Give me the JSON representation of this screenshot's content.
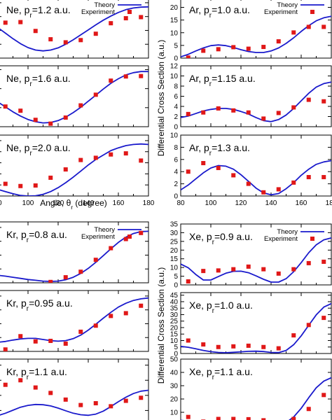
{
  "legend": {
    "theory": "Theory",
    "experiment": "Experiment"
  },
  "colors": {
    "theory": "#1a1acc",
    "experiment": "#e01818"
  },
  "xlabel": "Angle, θ",
  "xlabel_sub": "r",
  "xlabel_unit": " (degree)",
  "ylabel": "Differential Cross Section (a.u.)",
  "chart_data": [
    {
      "id": "ne12",
      "type": "line",
      "title": "Ne, p",
      "title_sub": "r",
      "title_val": "=1.2 a.u.",
      "xlim": [
        80,
        180
      ],
      "ylim": [
        0,
        22
      ],
      "experiment": {
        "x": [
          85,
          95,
          105,
          115,
          125,
          135,
          145,
          155,
          165,
          175
        ],
        "y": [
          12.8,
          13,
          9.8,
          6.8,
          5.7,
          6.5,
          8.8,
          12.6,
          14.4,
          14.8
        ]
      },
      "theory": {
        "x": [
          80,
          85,
          90,
          95,
          100,
          105,
          110,
          115,
          120,
          125,
          130,
          135,
          140,
          145,
          150,
          155,
          160,
          165,
          170,
          175,
          180
        ],
        "y": [
          11,
          9,
          7,
          5.2,
          3.8,
          2.9,
          2.6,
          2.9,
          3.7,
          5,
          6.6,
          8.4,
          10.2,
          12,
          13.7,
          15.2,
          16.5,
          17.5,
          18.1,
          18.4,
          18.5
        ]
      },
      "legend": true
    },
    {
      "id": "ne16",
      "type": "line",
      "title": "Ne, p",
      "title_sub": "r",
      "title_val": "=1.6 a.u.",
      "xlim": [
        80,
        180
      ],
      "ylim": [
        0,
        16
      ],
      "experiment": {
        "x": [
          85,
          95,
          105,
          115,
          125,
          135,
          145,
          155,
          165,
          175
        ],
        "y": [
          5.3,
          4.2,
          1.8,
          0.8,
          2.4,
          5.6,
          8.4,
          12.1,
          13.2,
          13.3
        ]
      },
      "theory": {
        "x": [
          80,
          85,
          90,
          95,
          100,
          105,
          110,
          115,
          120,
          125,
          130,
          135,
          140,
          145,
          150,
          155,
          160,
          165,
          170,
          175,
          180
        ],
        "y": [
          6.5,
          5.2,
          3.9,
          2.8,
          1.9,
          1.3,
          1,
          1.1,
          1.6,
          2.5,
          3.7,
          5.1,
          6.7,
          8.3,
          9.9,
          11.4,
          12.6,
          13.6,
          14.2,
          14.5,
          14.5
        ]
      },
      "legend": false
    },
    {
      "id": "ne20",
      "type": "line",
      "title": "Ne, p",
      "title_sub": "r",
      "title_val": "=2.0 a.u.",
      "xlim": [
        80,
        180
      ],
      "ylim": [
        0,
        11
      ],
      "experiment": {
        "x": [
          85,
          95,
          105,
          115,
          125,
          135,
          145,
          155,
          165,
          175
        ],
        "y": [
          2.2,
          1.8,
          1.9,
          3.3,
          4.8,
          6.5,
          6.9,
          7.5,
          7.7,
          6.4
        ]
      },
      "theory": {
        "x": [
          80,
          85,
          90,
          95,
          100,
          105,
          110,
          115,
          120,
          125,
          130,
          135,
          140,
          145,
          150,
          155,
          160,
          165,
          170,
          175,
          180
        ],
        "y": [
          1.2,
          0.8,
          0.4,
          0.1,
          0,
          0.05,
          0.3,
          0.8,
          1.5,
          2.4,
          3.4,
          4.5,
          5.6,
          6.6,
          7.4,
          8.2,
          8.7,
          9.1,
          9.3,
          9.4,
          9.3
        ]
      },
      "legend": false
    },
    {
      "id": "ar10",
      "type": "line",
      "title": "Ar, p",
      "title_sub": "r",
      "title_val": "=1.0 a.u.",
      "xlim": [
        80,
        180
      ],
      "ylim": [
        0,
        24
      ],
      "yticks": [
        0,
        5,
        10,
        15,
        20
      ],
      "experiment": {
        "x": [
          85,
          95,
          105,
          115,
          125,
          135,
          145,
          155,
          165,
          175
        ],
        "y": [
          0.2,
          2.9,
          3.5,
          4.3,
          3.7,
          4.4,
          6.6,
          10.1,
          12.3,
          12.3
        ]
      },
      "theory": {
        "x": [
          80,
          85,
          90,
          95,
          100,
          105,
          110,
          115,
          120,
          125,
          130,
          135,
          140,
          145,
          150,
          155,
          160,
          165,
          170,
          175,
          180
        ],
        "y": [
          0.5,
          1.5,
          2.8,
          4,
          4.9,
          5.2,
          4.9,
          4.2,
          3.3,
          2.6,
          2.2,
          2.2,
          2.8,
          4,
          5.8,
          8,
          10.5,
          12.8,
          14.7,
          15.9,
          16.5
        ]
      },
      "legend": true
    },
    {
      "id": "ar115",
      "type": "line",
      "title": "Ar, p",
      "title_sub": "r",
      "title_val": "=1.15 a.u.",
      "xlim": [
        80,
        180
      ],
      "ylim": [
        0,
        12
      ],
      "yticks": [
        0,
        2,
        4,
        6,
        8,
        10,
        12
      ],
      "experiment": {
        "x": [
          85,
          95,
          105,
          115,
          125,
          135,
          145,
          155,
          165,
          175
        ],
        "y": [
          2.5,
          2.8,
          3.6,
          3.2,
          2.8,
          1.6,
          2.7,
          3.8,
          5.3,
          5
        ]
      },
      "theory": {
        "x": [
          80,
          85,
          90,
          95,
          100,
          105,
          110,
          115,
          120,
          125,
          130,
          135,
          140,
          145,
          150,
          155,
          160,
          165,
          170,
          175,
          180
        ],
        "y": [
          1.8,
          2.1,
          2.6,
          3.1,
          3.4,
          3.6,
          3.6,
          3.4,
          3,
          2.5,
          1.8,
          1.2,
          1,
          1.4,
          2.3,
          3.6,
          5.1,
          6.6,
          7.8,
          8.5,
          8.8
        ]
      },
      "legend": false
    },
    {
      "id": "ar13",
      "type": "line",
      "title": "Ar, p",
      "title_sub": "r",
      "title_val": "=1.3 a.u.",
      "xlim": [
        80,
        180
      ],
      "ylim": [
        0,
        10
      ],
      "yticks": [
        0,
        2,
        4,
        6,
        8,
        10
      ],
      "experiment": {
        "x": [
          85,
          95,
          105,
          115,
          125,
          135,
          145,
          155,
          165,
          175
        ],
        "y": [
          4,
          5.4,
          4.6,
          3.4,
          2,
          0.6,
          1.1,
          2.2,
          3.1,
          3.1
        ]
      },
      "theory": {
        "x": [
          80,
          85,
          90,
          95,
          100,
          105,
          110,
          115,
          120,
          125,
          130,
          135,
          140,
          145,
          150,
          155,
          160,
          165,
          170,
          175,
          180
        ],
        "y": [
          1,
          1.8,
          2.8,
          3.8,
          4.6,
          5,
          4.9,
          4.4,
          3.5,
          2.4,
          1.3,
          0.5,
          0.2,
          0.4,
          1.2,
          2.2,
          3.4,
          4.4,
          5.2,
          5.6,
          5.8
        ]
      },
      "legend": false
    },
    {
      "id": "kr08",
      "type": "line",
      "title": "Kr, p",
      "title_sub": "r",
      "title_val": "=0.8 a.u.",
      "xlim": [
        80,
        180
      ],
      "ylim": [
        0,
        22
      ],
      "experiment": {
        "x": [
          115,
          125,
          135,
          145,
          155,
          165,
          175
        ],
        "y": [
          0.3,
          2,
          4,
          8.3,
          12.5,
          15.8,
          18
        ]
      },
      "theory": {
        "x": [
          80,
          85,
          90,
          95,
          100,
          105,
          110,
          115,
          120,
          125,
          130,
          135,
          140,
          145,
          150,
          155,
          160,
          165,
          170,
          175,
          180
        ],
        "y": [
          2.7,
          2.4,
          2,
          1.6,
          1.2,
          0.9,
          0.6,
          0.5,
          0.6,
          1.1,
          2,
          3.4,
          5.2,
          7.4,
          9.8,
          12.3,
          14.6,
          16.5,
          17.8,
          18.5,
          18.6
        ]
      },
      "legend": true
    },
    {
      "id": "kr095",
      "type": "line",
      "title": "Kr, p",
      "title_sub": "r",
      "title_val": "=0.95 a.u.",
      "xlim": [
        80,
        180
      ],
      "ylim": [
        0,
        22
      ],
      "experiment": {
        "x": [
          85,
          95,
          105,
          115,
          125,
          135,
          145,
          155,
          165,
          175
        ],
        "y": [
          0.7,
          5.5,
          3.6,
          3.8,
          2.8,
          7.1,
          9.3,
          12.8,
          13.8,
          16.5
        ]
      },
      "theory": {
        "x": [
          80,
          85,
          90,
          95,
          100,
          105,
          110,
          115,
          120,
          125,
          130,
          135,
          140,
          145,
          150,
          155,
          160,
          165,
          170,
          175,
          180
        ],
        "y": [
          3.3,
          3.6,
          4.1,
          4.5,
          4.7,
          4.7,
          4.3,
          3.9,
          3.7,
          3.9,
          4.6,
          5.9,
          7.7,
          9.8,
          12,
          14.1,
          16,
          17.4,
          18.4,
          19,
          19.3
        ]
      },
      "legend": false
    },
    {
      "id": "kr11",
      "type": "line",
      "title": "Kr, p",
      "title_sub": "r",
      "title_val": "=1.1 a.u.",
      "xlim": [
        80,
        180
      ],
      "ylim": [
        0,
        22
      ],
      "experiment": {
        "x": [
          85,
          95,
          105,
          115,
          125,
          135,
          145,
          155,
          165,
          175
        ],
        "y": [
          13.5,
          15,
          12.6,
          10.8,
          8.6,
          6.8,
          7.4,
          6.4,
          8.2,
          9.2
        ]
      },
      "theory": {
        "x": [
          80,
          85,
          90,
          95,
          100,
          105,
          110,
          115,
          120,
          125,
          130,
          135,
          140,
          145,
          150,
          155,
          160,
          165,
          170,
          175,
          180
        ],
        "y": [
          3.3,
          4.1,
          5.1,
          6.1,
          6.7,
          7,
          6.9,
          6.5,
          5.8,
          4.9,
          4.1,
          3.6,
          3.4,
          3.8,
          4.8,
          6.3,
          7.9,
          9.4,
          10.6,
          11.4,
          11.7
        ]
      },
      "legend": false
    },
    {
      "id": "xe09",
      "type": "line",
      "title": "Xe, p",
      "title_sub": "r",
      "title_val": "=0.9 a.u.",
      "xlim": [
        80,
        180
      ],
      "ylim": [
        0,
        35
      ],
      "yticks": [
        0,
        5,
        10,
        15,
        20,
        25,
        30,
        35
      ],
      "experiment": {
        "x": [
          85,
          95,
          105,
          115,
          125,
          135,
          145,
          155,
          165,
          175
        ],
        "y": [
          2,
          8,
          8.3,
          9,
          10.5,
          9,
          6.5,
          9,
          12.5,
          13.3
        ]
      },
      "theory": {
        "x": [
          80,
          85,
          90,
          95,
          100,
          105,
          110,
          115,
          120,
          125,
          130,
          135,
          140,
          145,
          150,
          155,
          160,
          165,
          170,
          175,
          180
        ],
        "y": [
          12,
          9.8,
          6,
          2.8,
          2.8,
          4.8,
          6.7,
          7.8,
          7.9,
          7,
          5.2,
          3.2,
          1.6,
          1.6,
          3.6,
          7.6,
          12.8,
          18.5,
          23,
          25.9,
          27
        ]
      },
      "legend": true
    },
    {
      "id": "xe10",
      "type": "line",
      "title": "Xe, p",
      "title_sub": "r",
      "title_val": "=1.0 a.u.",
      "xlim": [
        80,
        180
      ],
      "ylim": [
        0,
        47
      ],
      "yticks": [
        0,
        5,
        10,
        15,
        20,
        25,
        30,
        35,
        40,
        45
      ],
      "experiment": {
        "x": [
          85,
          95,
          105,
          115,
          125,
          135,
          145,
          155,
          165,
          175
        ],
        "y": [
          10,
          7,
          5,
          5.5,
          6,
          5,
          4,
          14,
          22,
          27.5
        ]
      },
      "theory": {
        "x": [
          80,
          85,
          90,
          95,
          100,
          105,
          110,
          115,
          120,
          125,
          130,
          135,
          140,
          145,
          150,
          155,
          160,
          165,
          170,
          175,
          180
        ],
        "y": [
          5.5,
          4.8,
          3.6,
          2.4,
          1.4,
          0.8,
          0.6,
          0.9,
          1.3,
          1.7,
          1.8,
          1.5,
          0.8,
          0.7,
          2.4,
          6.8,
          13.6,
          21.8,
          29.8,
          35.8,
          38.5
        ]
      },
      "legend": false
    },
    {
      "id": "xe11",
      "type": "line",
      "title": "Xe, p",
      "title_sub": "r",
      "title_val": "=1.1 a.u.",
      "xlim": [
        80,
        180
      ],
      "ylim": [
        0,
        50
      ],
      "experiment": {
        "x": [
          85,
          95,
          105,
          115,
          125,
          135,
          145,
          155,
          165,
          175
        ],
        "y": [
          6.5,
          3,
          5,
          5,
          4.8,
          4,
          2.5,
          5,
          12.5,
          23
        ]
      },
      "theory": {
        "x": [
          80,
          85,
          90,
          95,
          100,
          105,
          110,
          115,
          120,
          125,
          130,
          135,
          140,
          145,
          150,
          155,
          160,
          165,
          170,
          175,
          180
        ],
        "y": [
          4,
          3.4,
          2.5,
          1.6,
          0.8,
          0.4,
          0.2,
          0.2,
          0.4,
          0.6,
          0.6,
          0.5,
          0.3,
          0.5,
          2.2,
          6.5,
          13,
          21,
          28.5,
          33.5,
          36
        ]
      },
      "legend": false
    }
  ]
}
